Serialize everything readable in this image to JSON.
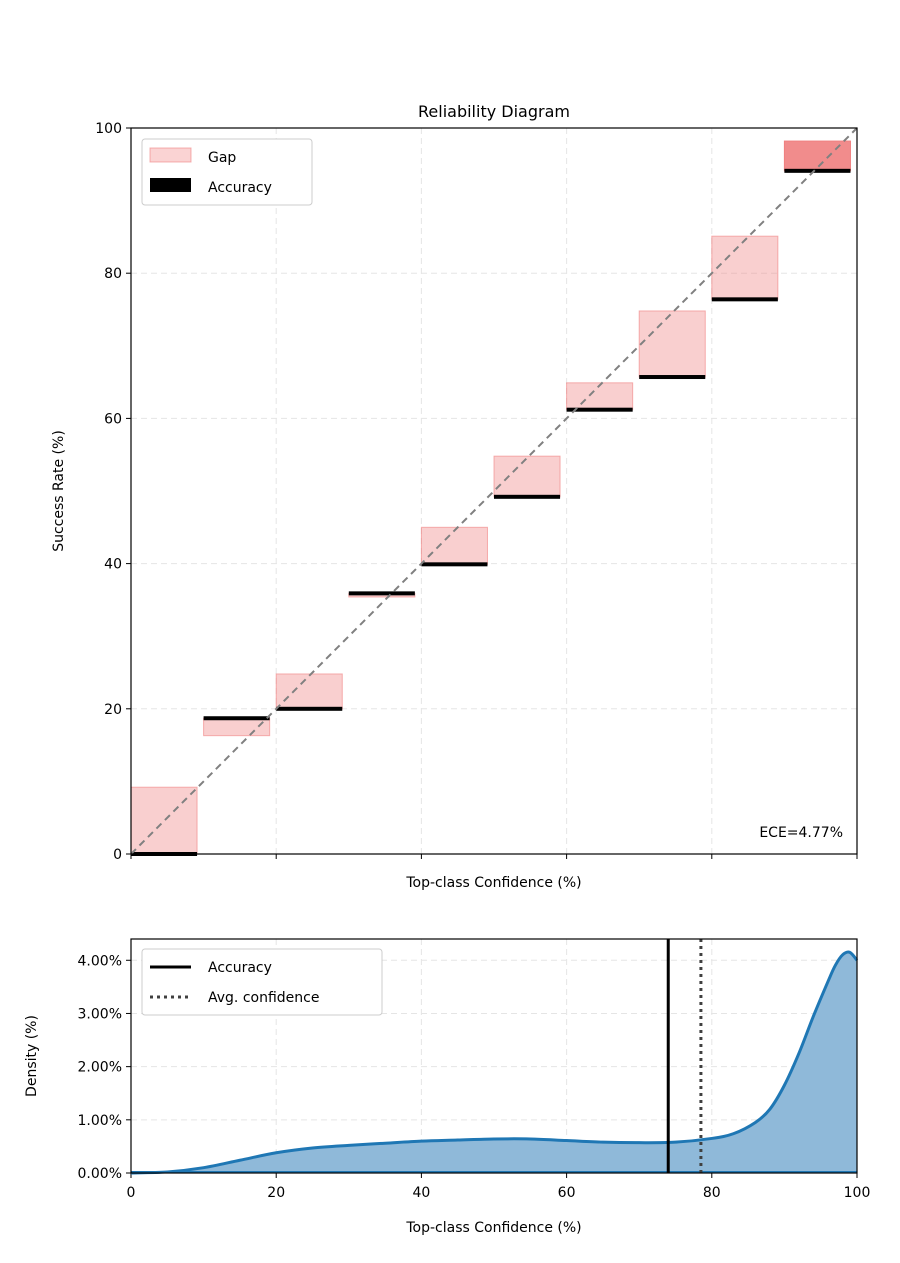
{
  "chart_data": [
    {
      "type": "bar",
      "title": "Reliability Diagram",
      "xlabel": "Top-class Confidence (%)",
      "ylabel": "Success Rate (%)",
      "xlim": [
        0,
        100
      ],
      "ylim": [
        0,
        100
      ],
      "xticks": [
        0,
        20,
        40,
        60,
        80,
        100
      ],
      "yticks": [
        0,
        20,
        40,
        60,
        80,
        100
      ],
      "xtick_labels_shown": false,
      "grid": true,
      "legend": {
        "placement": "top-left",
        "entries": [
          "Gap",
          "Accuracy"
        ]
      },
      "bin_starts": [
        0,
        10,
        20,
        30,
        40,
        50,
        60,
        70,
        80,
        90
      ],
      "series": [
        {
          "name": "Accuracy",
          "values": [
            0,
            18.7,
            20.0,
            35.9,
            39.9,
            49.2,
            61.2,
            65.7,
            76.4,
            94.1
          ]
        },
        {
          "name": "Gap",
          "values": [
            9.2,
            16.3,
            24.8,
            35.4,
            45.0,
            54.8,
            64.9,
            74.8,
            85.1,
            98.2
          ]
        }
      ],
      "diagonal": "identity (dashed gray)",
      "annotation": "ECE=4.77%",
      "colors": {
        "gap": "#f08080",
        "gap_edge": "#f08080",
        "accuracy": "#000000",
        "diagonal": "#808080"
      }
    },
    {
      "type": "area",
      "xlabel": "Top-class Confidence (%)",
      "ylabel": "Density (%)",
      "xlim": [
        0,
        100
      ],
      "ylim": [
        0,
        4.4
      ],
      "xticks": [
        "0",
        "20",
        "40",
        "60",
        "80",
        "100"
      ],
      "yticks": [
        "0.00%",
        "1.00%",
        "2.00%",
        "3.00%",
        "4.00%"
      ],
      "grid": true,
      "legend": {
        "placement": "top-left",
        "entries": [
          "Accuracy",
          "Avg. confidence"
        ]
      },
      "x": [
        0,
        5,
        10,
        15,
        20,
        25,
        30,
        35,
        40,
        45,
        50,
        55,
        60,
        65,
        70,
        75,
        80,
        83,
        86,
        88,
        90,
        92,
        94,
        96,
        97,
        98,
        99,
        100
      ],
      "values": [
        0,
        0.02,
        0.1,
        0.24,
        0.38,
        0.47,
        0.52,
        0.56,
        0.6,
        0.62,
        0.64,
        0.64,
        0.61,
        0.58,
        0.57,
        0.58,
        0.65,
        0.74,
        0.95,
        1.2,
        1.65,
        2.25,
        2.95,
        3.6,
        3.9,
        4.1,
        4.15,
        4.0
      ],
      "vlines": [
        {
          "name": "Accuracy",
          "x": 74.0,
          "style": "solid"
        },
        {
          "name": "Avg. confidence",
          "x": 78.5,
          "style": "dotted"
        }
      ],
      "colors": {
        "line": "#1f77b4",
        "fill": "#8fb9d9",
        "accuracy": "#000000",
        "avg_confidence": "#404040"
      }
    }
  ]
}
